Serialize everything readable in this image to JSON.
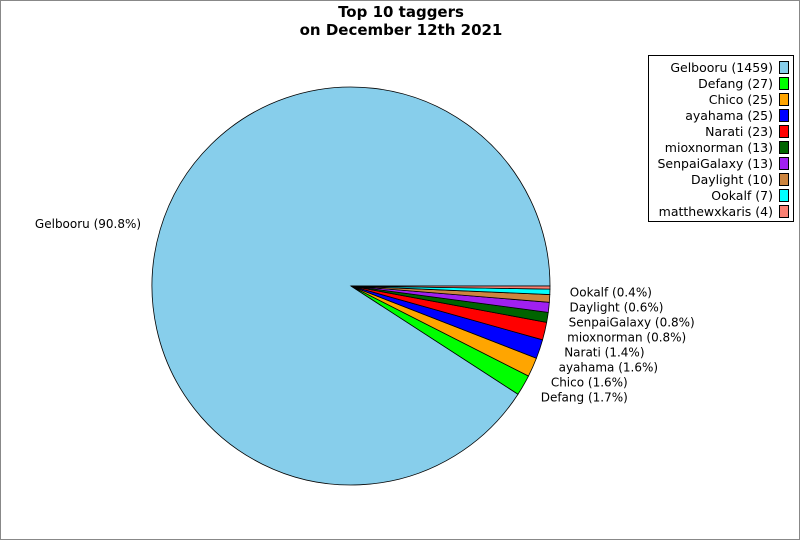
{
  "chart_data": {
    "type": "pie",
    "title_line1": "Top 10 taggers",
    "title_line2": "on December 12th 2021",
    "start_angle_deg": 0,
    "direction": "counterclockwise",
    "legend_placement": "top-right",
    "slices": [
      {
        "name": "Gelbooru",
        "value": 1459,
        "legend": "Gelbooru (1459)",
        "label": "Gelbooru (90.8%)",
        "color": "#87ceeb"
      },
      {
        "name": "Defang",
        "value": 27,
        "legend": "Defang (27)",
        "label": "Defang (1.7%)",
        "color": "#00ff00"
      },
      {
        "name": "Chico",
        "value": 25,
        "legend": "Chico (25)",
        "label": "Chico (1.6%)",
        "color": "#ffa500"
      },
      {
        "name": "ayahama",
        "value": 25,
        "legend": "ayahama (25)",
        "label": "ayahama (1.6%)",
        "color": "#0000ff"
      },
      {
        "name": "Narati",
        "value": 23,
        "legend": "Narati (23)",
        "label": "Narati (1.4%)",
        "color": "#ff0000"
      },
      {
        "name": "mioxnorman",
        "value": 13,
        "legend": "mioxnorman (13)",
        "label": "mioxnorman (0.8%)",
        "color": "#006400"
      },
      {
        "name": "SenpaiGalaxy",
        "value": 13,
        "legend": "SenpaiGalaxy (13)",
        "label": "SenpaiGalaxy (0.8%)",
        "color": "#a020f0"
      },
      {
        "name": "Daylight",
        "value": 10,
        "legend": "Daylight (10)",
        "label": "Daylight (0.6%)",
        "color": "#cd853f"
      },
      {
        "name": "Ookalf",
        "value": 7,
        "legend": "Ookalf (7)",
        "label": "Ookalf (0.4%)",
        "color": "#00ffff"
      },
      {
        "name": "matthewxkaris",
        "value": 4,
        "legend": "matthewxkaris (4)",
        "label": "",
        "color": "#fa8072"
      }
    ]
  }
}
